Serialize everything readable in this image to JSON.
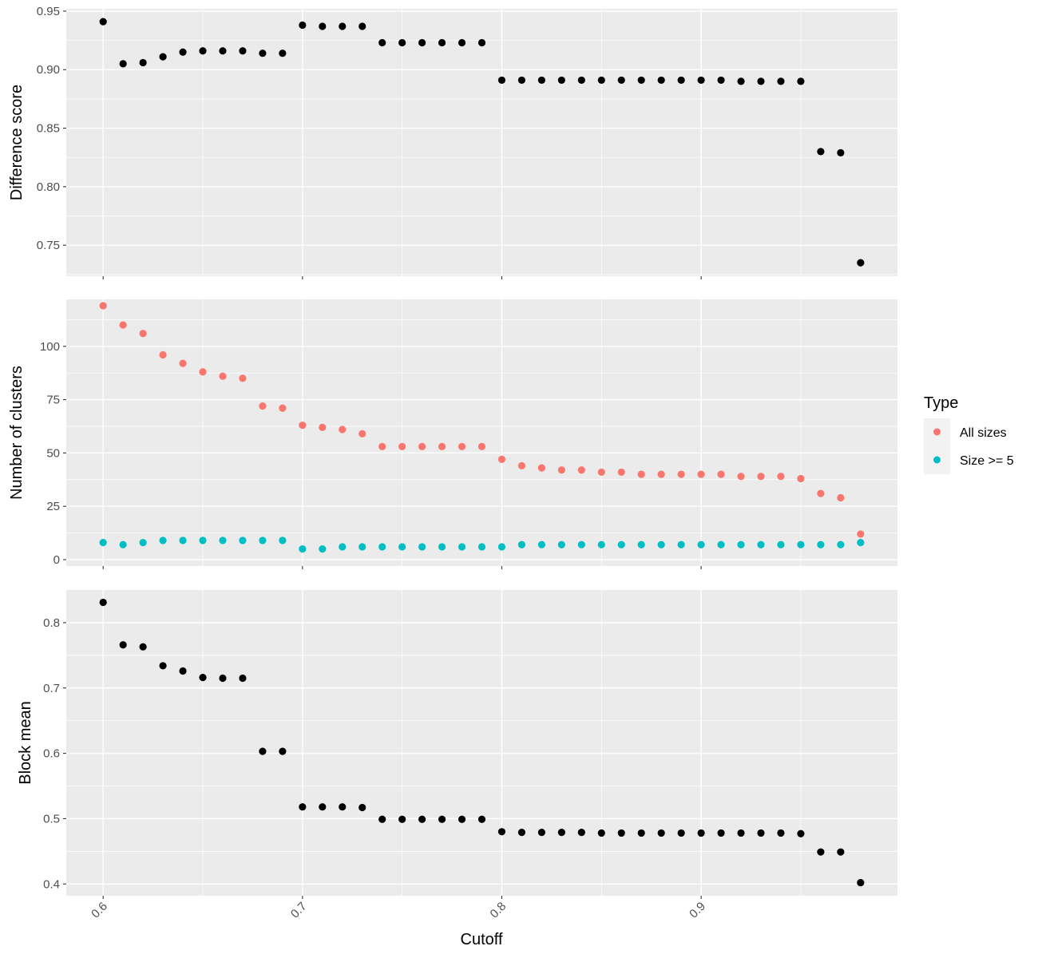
{
  "colors": {
    "panel_bg": "#ebebeb",
    "grid_major": "#ffffff",
    "black_points": "#000000",
    "all_sizes": "#f8766d",
    "size_ge_5": "#00bfc4",
    "legend_key_bg": "#f2f2f2"
  },
  "chart_data": {
    "type": "scatter",
    "x_label": "Cutoff",
    "x_ticks": [
      "0.6",
      "0.7",
      "0.8",
      "0.9"
    ],
    "x_tick_values": [
      0.6,
      0.7,
      0.8,
      0.9
    ],
    "xlim": [
      0.5815,
      0.9985
    ],
    "legend": {
      "title": "Type",
      "placement": "right",
      "items": [
        {
          "label": "All sizes",
          "color": "#f8766d"
        },
        {
          "label": "Size >= 5",
          "color": "#00bfc4"
        }
      ]
    },
    "panels": [
      {
        "y_label": "Difference score",
        "ylim": [
          0.7235,
          0.952
        ],
        "y_ticks": [
          "0.75",
          "0.80",
          "0.85",
          "0.90",
          "0.95"
        ],
        "y_tick_values": [
          0.75,
          0.8,
          0.85,
          0.9,
          0.95
        ],
        "series": [
          {
            "color": "#000000",
            "x": [
              0.6,
              0.61,
              0.62,
              0.63,
              0.64,
              0.65,
              0.66,
              0.67,
              0.68,
              0.69,
              0.7,
              0.71,
              0.72,
              0.73,
              0.74,
              0.75,
              0.76,
              0.77,
              0.78,
              0.79,
              0.8,
              0.81,
              0.82,
              0.83,
              0.84,
              0.85,
              0.86,
              0.87,
              0.88,
              0.89,
              0.9,
              0.91,
              0.92,
              0.93,
              0.94,
              0.95,
              0.96,
              0.97,
              0.98
            ],
            "y": [
              0.941,
              0.905,
              0.906,
              0.911,
              0.915,
              0.916,
              0.916,
              0.916,
              0.914,
              0.914,
              0.938,
              0.937,
              0.937,
              0.937,
              0.923,
              0.923,
              0.923,
              0.923,
              0.923,
              0.923,
              0.891,
              0.891,
              0.891,
              0.891,
              0.891,
              0.891,
              0.891,
              0.891,
              0.891,
              0.891,
              0.891,
              0.891,
              0.89,
              0.89,
              0.89,
              0.89,
              0.83,
              0.829,
              0.735
            ]
          }
        ]
      },
      {
        "y_label": "Number of clusters",
        "ylim": [
          -3,
          122
        ],
        "y_ticks": [
          "0",
          "25",
          "50",
          "75",
          "100"
        ],
        "y_tick_values": [
          0,
          25,
          50,
          75,
          100
        ],
        "series": [
          {
            "name": "All sizes",
            "color": "#f8766d",
            "x": [
              0.6,
              0.61,
              0.62,
              0.63,
              0.64,
              0.65,
              0.66,
              0.67,
              0.68,
              0.69,
              0.7,
              0.71,
              0.72,
              0.73,
              0.74,
              0.75,
              0.76,
              0.77,
              0.78,
              0.79,
              0.8,
              0.81,
              0.82,
              0.83,
              0.84,
              0.85,
              0.86,
              0.87,
              0.88,
              0.89,
              0.9,
              0.91,
              0.92,
              0.93,
              0.94,
              0.95,
              0.96,
              0.97,
              0.98
            ],
            "y": [
              119,
              110,
              106,
              96,
              92,
              88,
              86,
              85,
              72,
              71,
              63,
              62,
              61,
              59,
              53,
              53,
              53,
              53,
              53,
              53,
              47,
              44,
              43,
              42,
              42,
              41,
              41,
              40,
              40,
              40,
              40,
              40,
              39,
              39,
              39,
              38,
              31,
              29,
              12
            ]
          },
          {
            "name": "Size >= 5",
            "color": "#00bfc4",
            "x": [
              0.6,
              0.61,
              0.62,
              0.63,
              0.64,
              0.65,
              0.66,
              0.67,
              0.68,
              0.69,
              0.7,
              0.71,
              0.72,
              0.73,
              0.74,
              0.75,
              0.76,
              0.77,
              0.78,
              0.79,
              0.8,
              0.81,
              0.82,
              0.83,
              0.84,
              0.85,
              0.86,
              0.87,
              0.88,
              0.89,
              0.9,
              0.91,
              0.92,
              0.93,
              0.94,
              0.95,
              0.96,
              0.97,
              0.98
            ],
            "y": [
              8,
              7,
              8,
              9,
              9,
              9,
              9,
              9,
              9,
              9,
              5,
              5,
              6,
              6,
              6,
              6,
              6,
              6,
              6,
              6,
              6,
              7,
              7,
              7,
              7,
              7,
              7,
              7,
              7,
              7,
              7,
              7,
              7,
              7,
              7,
              7,
              7,
              7,
              8
            ]
          }
        ]
      },
      {
        "y_label": "Block mean",
        "ylim": [
          0.382,
          0.85
        ],
        "y_ticks": [
          "0.4",
          "0.5",
          "0.6",
          "0.7",
          "0.8"
        ],
        "y_tick_values": [
          0.4,
          0.5,
          0.6,
          0.7,
          0.8
        ],
        "series": [
          {
            "color": "#000000",
            "x": [
              0.6,
              0.61,
              0.62,
              0.63,
              0.64,
              0.65,
              0.66,
              0.67,
              0.68,
              0.69,
              0.7,
              0.71,
              0.72,
              0.73,
              0.74,
              0.75,
              0.76,
              0.77,
              0.78,
              0.79,
              0.8,
              0.81,
              0.82,
              0.83,
              0.84,
              0.85,
              0.86,
              0.87,
              0.88,
              0.89,
              0.9,
              0.91,
              0.92,
              0.93,
              0.94,
              0.95,
              0.96,
              0.97,
              0.98
            ],
            "y": [
              0.831,
              0.766,
              0.763,
              0.734,
              0.726,
              0.716,
              0.715,
              0.715,
              0.603,
              0.603,
              0.518,
              0.518,
              0.518,
              0.517,
              0.499,
              0.499,
              0.499,
              0.499,
              0.499,
              0.499,
              0.48,
              0.479,
              0.479,
              0.479,
              0.479,
              0.478,
              0.478,
              0.478,
              0.478,
              0.478,
              0.478,
              0.478,
              0.478,
              0.478,
              0.478,
              0.477,
              0.449,
              0.449,
              0.402
            ]
          }
        ]
      }
    ]
  }
}
